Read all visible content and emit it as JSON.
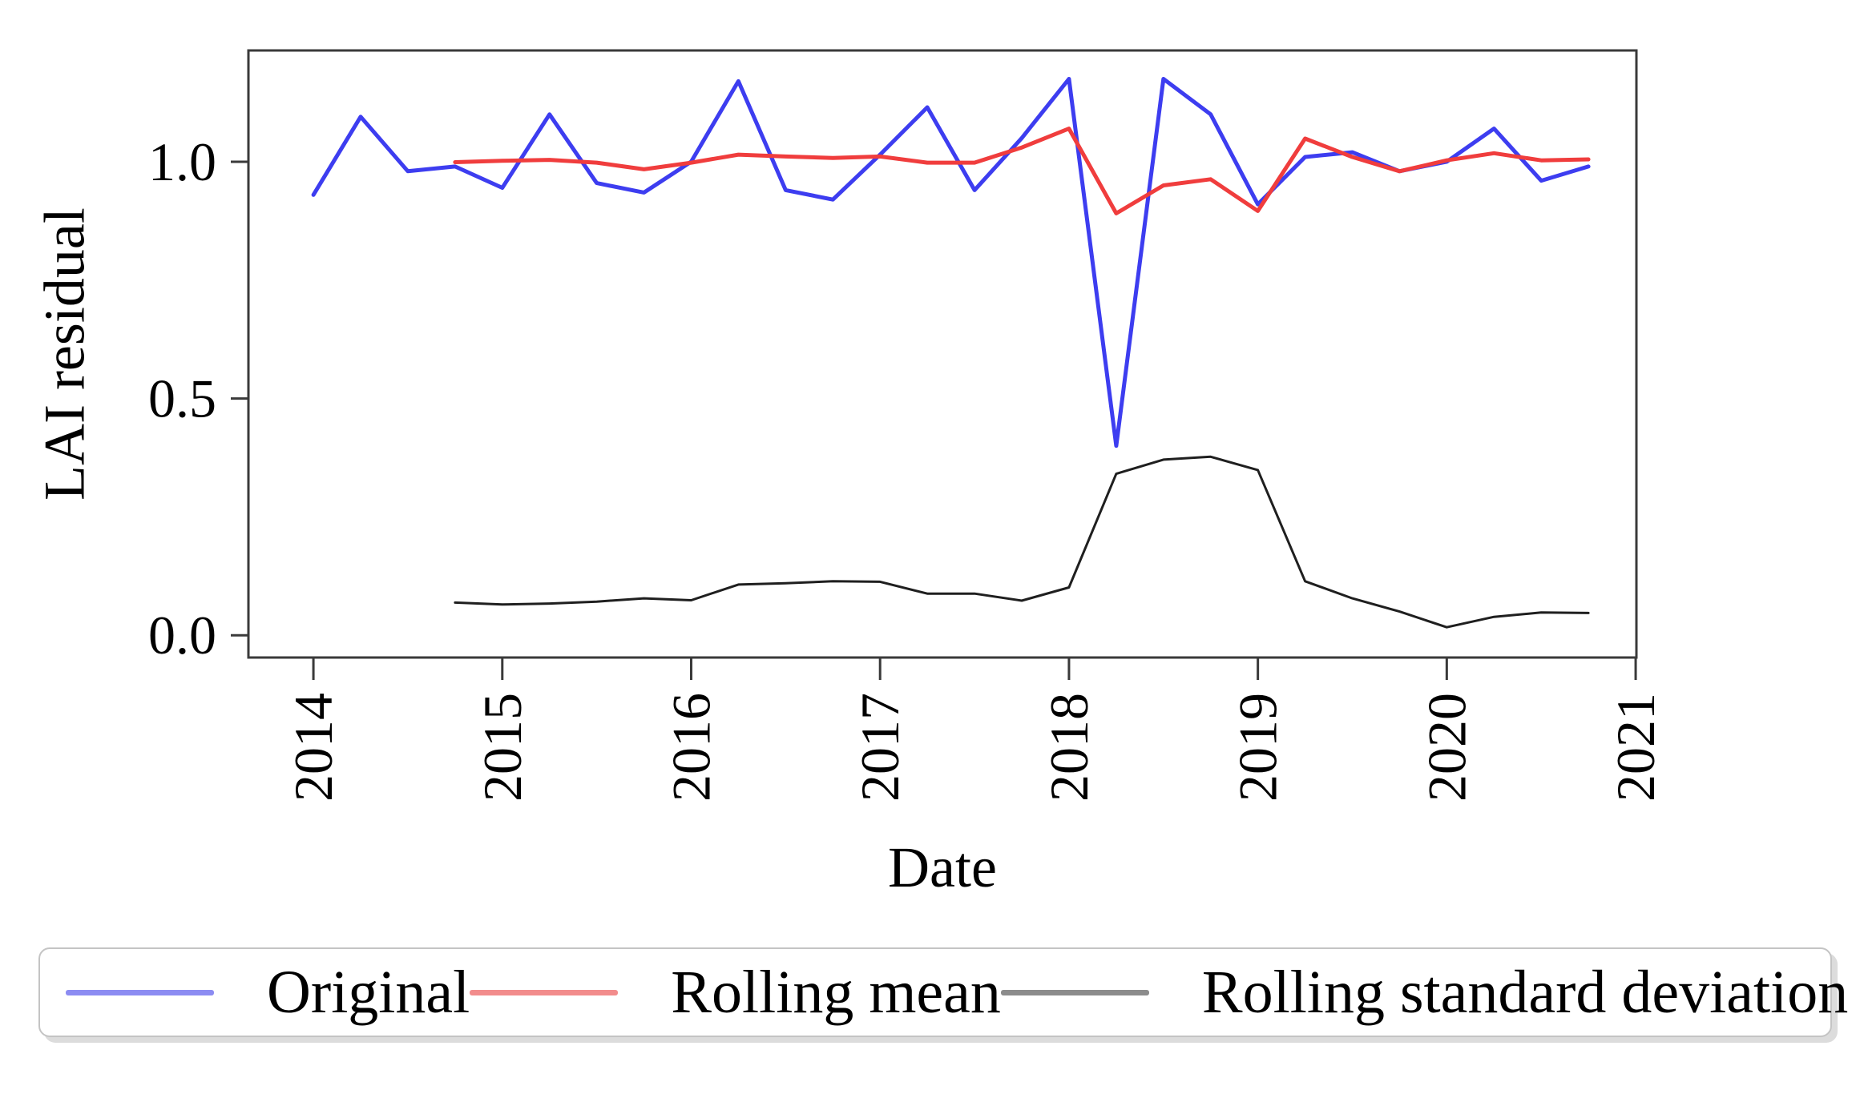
{
  "figure": {
    "xlabel": "Date",
    "ylabel": "LAI residual"
  },
  "legend": {
    "items": [
      {
        "label": "Original",
        "color": "#8c8cf2"
      },
      {
        "label": "Rolling mean",
        "color": "#f28c8c"
      },
      {
        "label": "Rolling standard deviation",
        "color": "#8c8c8c"
      }
    ]
  },
  "chart_data": {
    "type": "line",
    "title": "",
    "xlabel": "Date",
    "ylabel": "LAI residual",
    "grid": false,
    "legend_position": "below",
    "x_ticks": [
      2014,
      2015,
      2016,
      2017,
      2018,
      2019,
      2020,
      2021
    ],
    "y_ticks": [
      0.0,
      0.5,
      1.0
    ],
    "x_range": [
      2013.656,
      2021.004
    ],
    "y_range": [
      -0.047,
      1.235
    ],
    "axis_color": "#3a3a3a",
    "series": [
      {
        "name": "Original",
        "color": "#3d3df0",
        "line_width": 5,
        "x": [
          2014.0,
          2014.25,
          2014.5,
          2014.75,
          2015.0,
          2015.25,
          2015.5,
          2015.75,
          2016.0,
          2016.25,
          2016.5,
          2016.75,
          2017.0,
          2017.25,
          2017.5,
          2017.75,
          2018.0,
          2018.25,
          2018.5,
          2018.75,
          2019.0,
          2019.25,
          2019.5,
          2019.75,
          2020.0,
          2020.25,
          2020.5,
          2020.75
        ],
        "y": [
          0.93,
          1.095,
          0.98,
          0.99,
          0.945,
          1.1,
          0.955,
          0.935,
          1.0,
          1.17,
          0.94,
          0.92,
          1.015,
          1.115,
          0.94,
          1.05,
          1.175,
          0.4,
          1.175,
          1.1,
          0.91,
          1.01,
          1.02,
          0.98,
          1.0,
          1.07,
          0.96,
          0.99
        ]
      },
      {
        "name": "Rolling mean",
        "color": "#f03d3d",
        "line_width": 5,
        "x": [
          2014.75,
          2015.0,
          2015.25,
          2015.5,
          2015.75,
          2016.0,
          2016.25,
          2016.5,
          2016.75,
          2017.0,
          2017.25,
          2017.5,
          2017.75,
          2018.0,
          2018.25,
          2018.5,
          2018.75,
          2019.0,
          2019.25,
          2019.5,
          2019.75,
          2020.0,
          2020.25,
          2020.5,
          2020.75
        ],
        "y": [
          0.999,
          1.002,
          1.004,
          0.998,
          0.984,
          0.998,
          1.015,
          1.011,
          1.008,
          1.011,
          0.998,
          0.998,
          1.03,
          1.07,
          0.891,
          0.95,
          0.963,
          0.896,
          1.049,
          1.01,
          0.98,
          1.003,
          1.018,
          1.003,
          1.005
        ]
      },
      {
        "name": "Rolling standard deviation",
        "color": "#1f1f1f",
        "line_width": 3,
        "x": [
          2014.75,
          2015.0,
          2015.25,
          2015.5,
          2015.75,
          2016.0,
          2016.25,
          2016.5,
          2016.75,
          2017.0,
          2017.25,
          2017.5,
          2017.75,
          2018.0,
          2018.25,
          2018.5,
          2018.75,
          2019.0,
          2019.25,
          2019.5,
          2019.75,
          2020.0,
          2020.25,
          2020.5,
          2020.75
        ],
        "y": [
          0.069,
          0.065,
          0.067,
          0.071,
          0.078,
          0.074,
          0.107,
          0.11,
          0.114,
          0.113,
          0.088,
          0.088,
          0.073,
          0.101,
          0.341,
          0.371,
          0.377,
          0.349,
          0.114,
          0.078,
          0.05,
          0.017,
          0.039,
          0.048,
          0.047
        ]
      }
    ]
  }
}
